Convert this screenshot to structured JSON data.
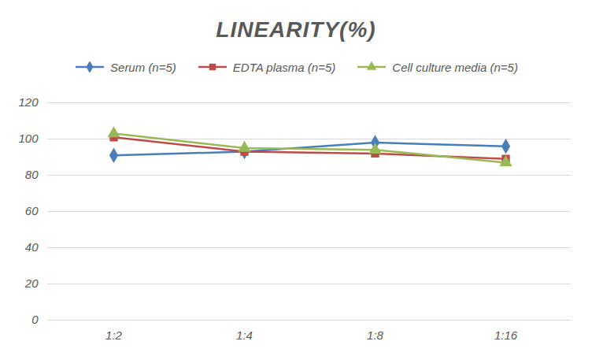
{
  "chart_data": {
    "type": "line",
    "title": "LINEARITY(%)",
    "categories": [
      "1:2",
      "1:4",
      "1:8",
      "1:16"
    ],
    "series": [
      {
        "name": "Serum (n=5)",
        "color": "#4a7ebb",
        "marker": "diamond",
        "values": [
          91,
          93,
          98,
          96
        ]
      },
      {
        "name": "EDTA plasma (n=5)",
        "color": "#be4b48",
        "marker": "square",
        "values": [
          101,
          93,
          92,
          89
        ]
      },
      {
        "name": "Cell culture media (n=5)",
        "color": "#98b954",
        "marker": "triangle",
        "values": [
          103,
          95,
          94,
          87
        ]
      }
    ],
    "ylim": [
      0,
      120
    ],
    "yticks": [
      0,
      20,
      40,
      60,
      80,
      100,
      120
    ],
    "grid": true,
    "legend": "top"
  }
}
